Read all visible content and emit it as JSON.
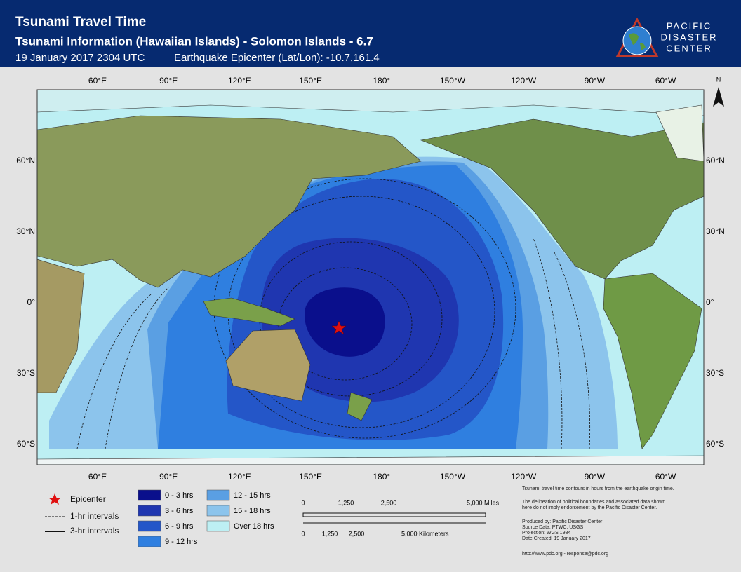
{
  "header": {
    "title": "Tsunami Travel Time",
    "subtitle": "Tsunami Information (Hawaiian Islands) - Solomon Islands - 6.7",
    "date": "19 January 2017 2304 UTC",
    "epicenter_line": "Earthquake Epicenter (Lat/Lon): -10.7,161.4",
    "logo": [
      "PACIFIC",
      "DISASTER",
      "CENTER"
    ]
  },
  "map": {
    "lon_labels": [
      "60°E",
      "90°E",
      "120°E",
      "150°E",
      "180°",
      "150°W",
      "120°W",
      "90°W",
      "60°W"
    ],
    "lat_labels": [
      "60°N",
      "30°N",
      "0°",
      "30°S",
      "60°S"
    ],
    "north": "N"
  },
  "legend": {
    "epicenter": "Epicenter",
    "one_hr": "1-hr intervals",
    "three_hr": "3-hr intervals",
    "bins": [
      {
        "label": "0 - 3 hrs",
        "color": "#0a0f8c"
      },
      {
        "label": "3 - 6 hrs",
        "color": "#1f36b0"
      },
      {
        "label": "6 - 9 hrs",
        "color": "#2456c8"
      },
      {
        "label": "9 - 12 hrs",
        "color": "#2f7fe0"
      },
      {
        "label": "12 - 15 hrs",
        "color": "#5a9fe3"
      },
      {
        "label": "15 - 18 hrs",
        "color": "#8cc4ec"
      },
      {
        "label": "Over 18 hrs",
        "color": "#bdeff3"
      }
    ]
  },
  "scale": {
    "miles": [
      "0",
      "1,250",
      "2,500",
      "5,000 Miles"
    ],
    "km": [
      "0",
      "1,250",
      "2,500",
      "5,000 Kilometers"
    ]
  },
  "notes": [
    "Tsunami travel time contours in hours from the earthquake origin time.",
    "The delineation of political boundaries and associated data shown",
    "here do not imply endorsement by the Pacific Disaster Center.",
    "Produced by: Pacific Disaster Center",
    "Source Data: PTWC, USGS",
    "Projection: WGS 1984",
    "Date Created: 19 January 2017",
    "http://www.pdc.org - response@pdc.org"
  ]
}
